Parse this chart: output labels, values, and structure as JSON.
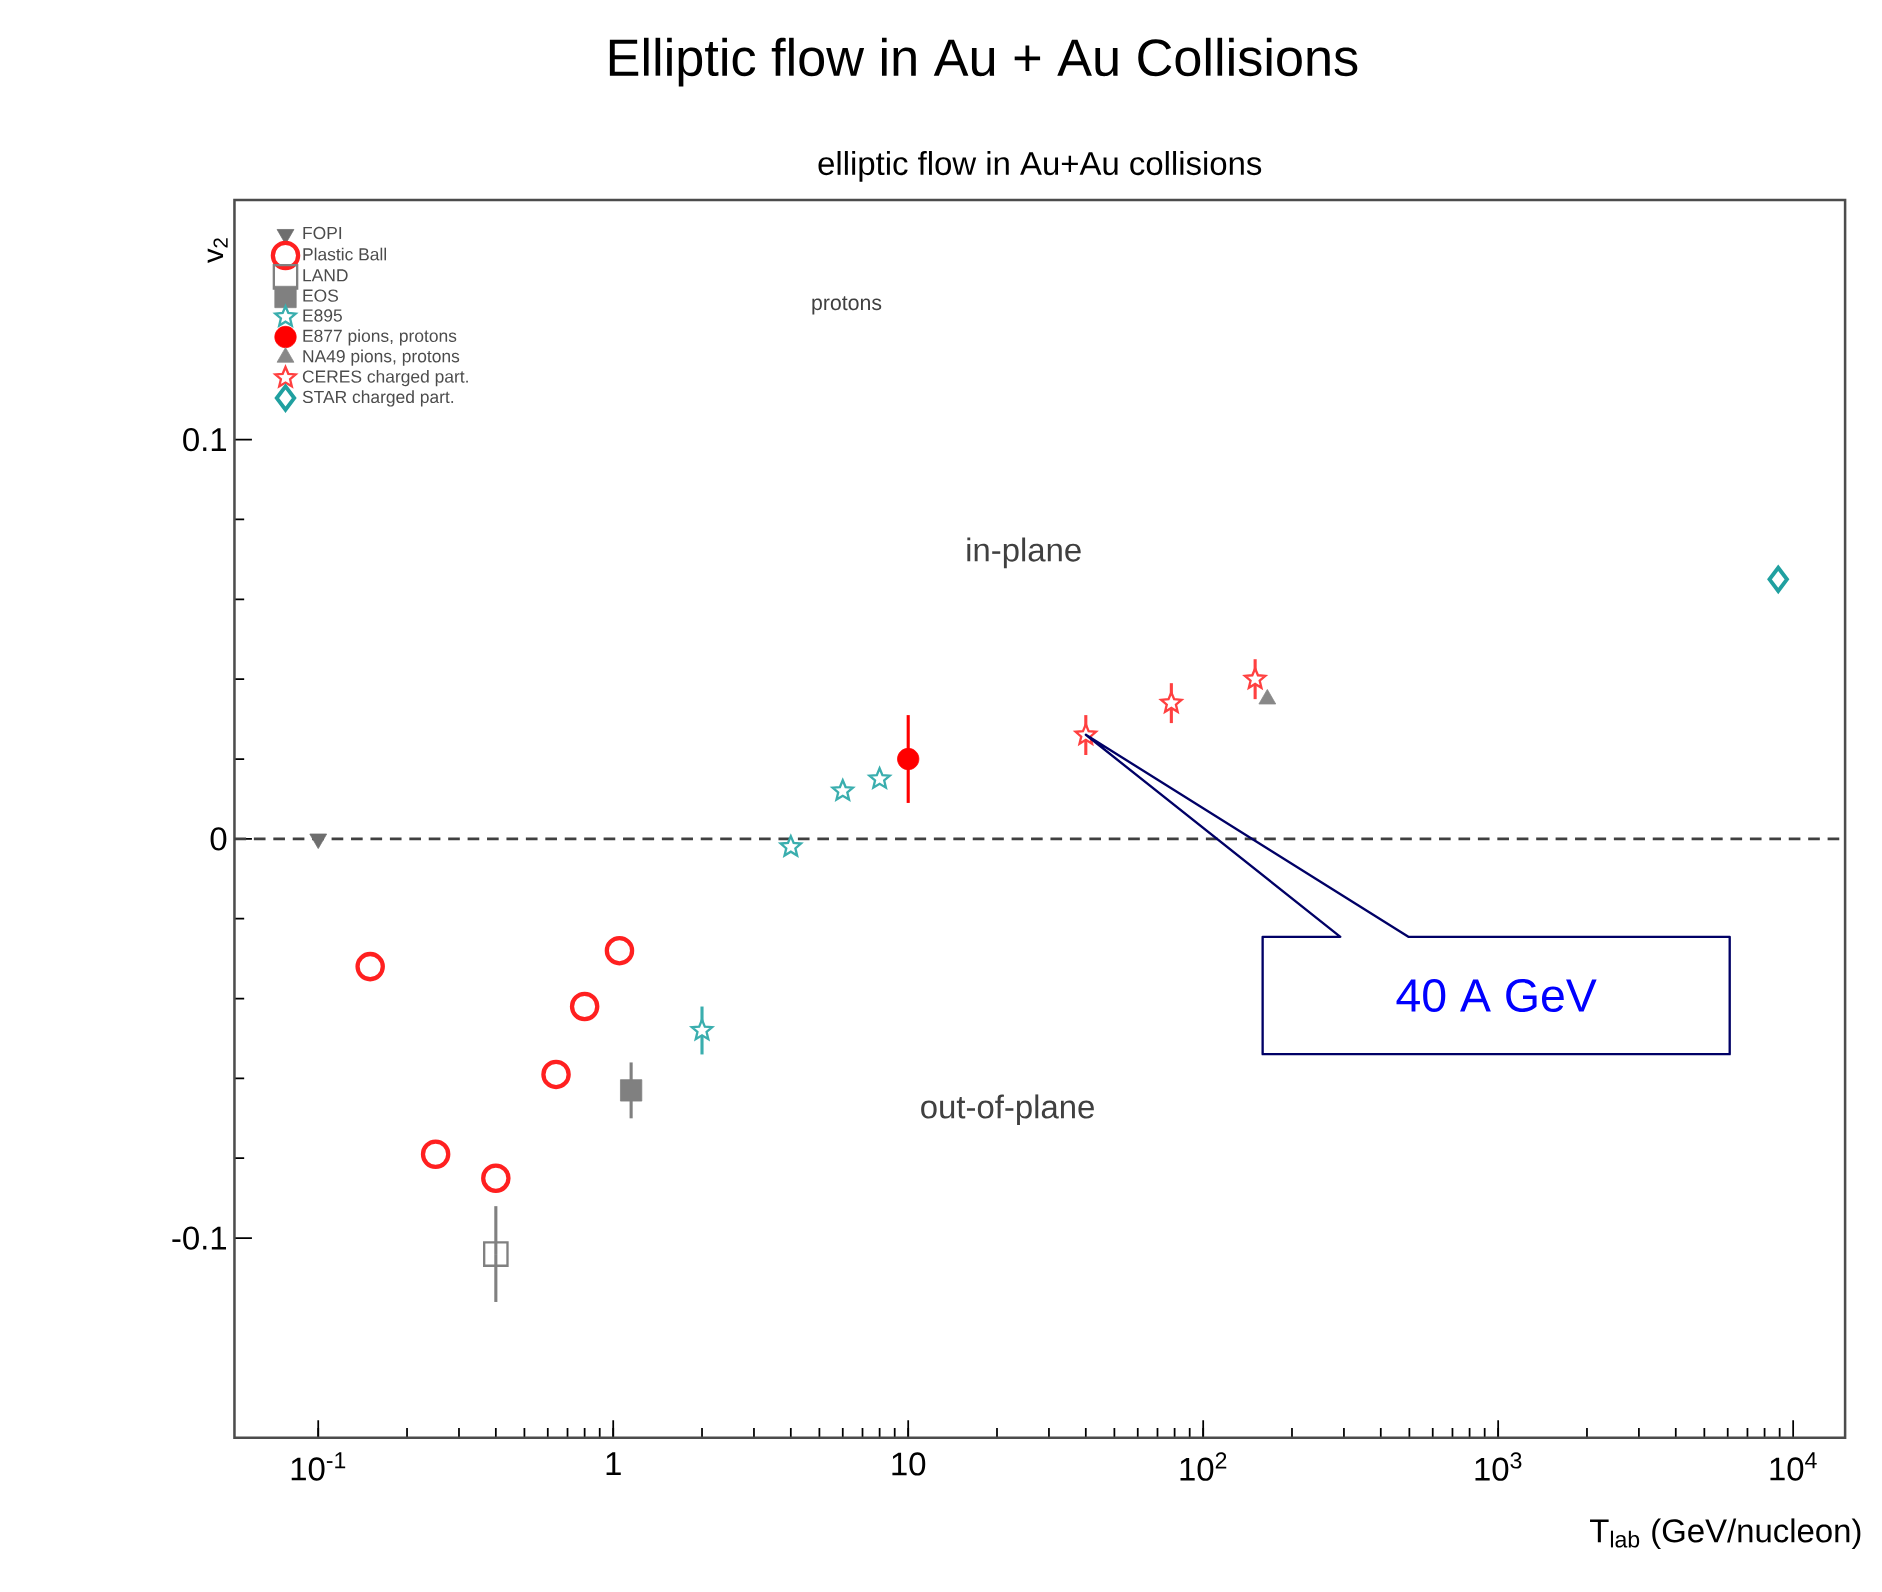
{
  "chart_data": {
    "type": "scatter",
    "title": "Elliptic flow in Au + Au Collisions",
    "subtitle": "elliptic flow in Au+Au collisions",
    "xlabel": "T$_{lab}$ (GeV/nucleon)",
    "ylabel": "v$_{2}$",
    "log": "x",
    "xlim": [
      0.052,
      15000
    ],
    "ylim": [
      -0.15,
      0.16
    ],
    "xticks": [
      {
        "value": 0.1,
        "label": "10$^{-1}$"
      },
      1,
      10,
      {
        "value": 100,
        "label": "10$^{2}$"
      },
      {
        "value": 1000,
        "label": "10$^{3}$"
      },
      {
        "value": 10000,
        "label": "10$^{4}$"
      }
    ],
    "yticks": [
      -0.1,
      0,
      0.1
    ],
    "grid": false,
    "legend": "top left",
    "ref_lines": [
      {
        "axis": "y",
        "value": 0,
        "color": "#404040",
        "line_style": "dashed"
      }
    ],
    "annotations": [
      "protons",
      "in-plane",
      "out-of-plane",
      "40 A GeV"
    ],
    "series": [
      {
        "name": "FOPI",
        "color": "#6e6e6e",
        "marker": "triangle-down",
        "x": [
          0.1
        ],
        "values": [
          0
        ]
      },
      {
        "name": "Plastic Ball",
        "color": "#ff2020",
        "marker": "circle-open",
        "x": [
          0.15,
          0.25,
          0.4,
          0.64,
          0.8,
          1.05
        ],
        "values": [
          -0.032,
          -0.079,
          -0.085,
          -0.059,
          -0.042,
          -0.028
        ]
      },
      {
        "name": "LAND",
        "color": "#808080",
        "marker": "square-open",
        "x": [
          0.4
        ],
        "values": [
          -0.104
        ],
        "errors": [
          0.012
        ]
      },
      {
        "name": "EOS",
        "color": "#808080",
        "marker": "square",
        "x": [
          1.15
        ],
        "values": [
          -0.063
        ],
        "errors": [
          0.007
        ]
      },
      {
        "name": "E895",
        "color": "#3aaeae",
        "marker": "star",
        "x": [
          2,
          4,
          6,
          8
        ],
        "values": [
          -0.048,
          -0.002,
          0.012,
          0.015
        ],
        "errors": [
          0.006,
          null,
          null,
          null
        ]
      },
      {
        "name": "E877 pions, protons",
        "color": "#ff0000",
        "marker": "circle",
        "x": [
          10
        ],
        "values": [
          0.02
        ],
        "errors": [
          0.011
        ]
      },
      {
        "name": "NA49 pions, protons",
        "color": "#888888",
        "marker": "triangle",
        "x": [
          165
        ],
        "values": [
          0.035
        ]
      },
      {
        "name": "CERES  charged part.",
        "color": "#ff4040",
        "marker": "star",
        "x": [
          40,
          78,
          150
        ],
        "values": [
          0.026,
          0.034,
          0.04
        ],
        "errors": [
          0.005,
          0.005,
          0.005
        ]
      },
      {
        "name": "STAR  charged part.",
        "color": "#20a0a0",
        "marker": "diamond-open",
        "x": [
          8900
        ],
        "values": [
          0.065
        ]
      }
    ]
  }
}
